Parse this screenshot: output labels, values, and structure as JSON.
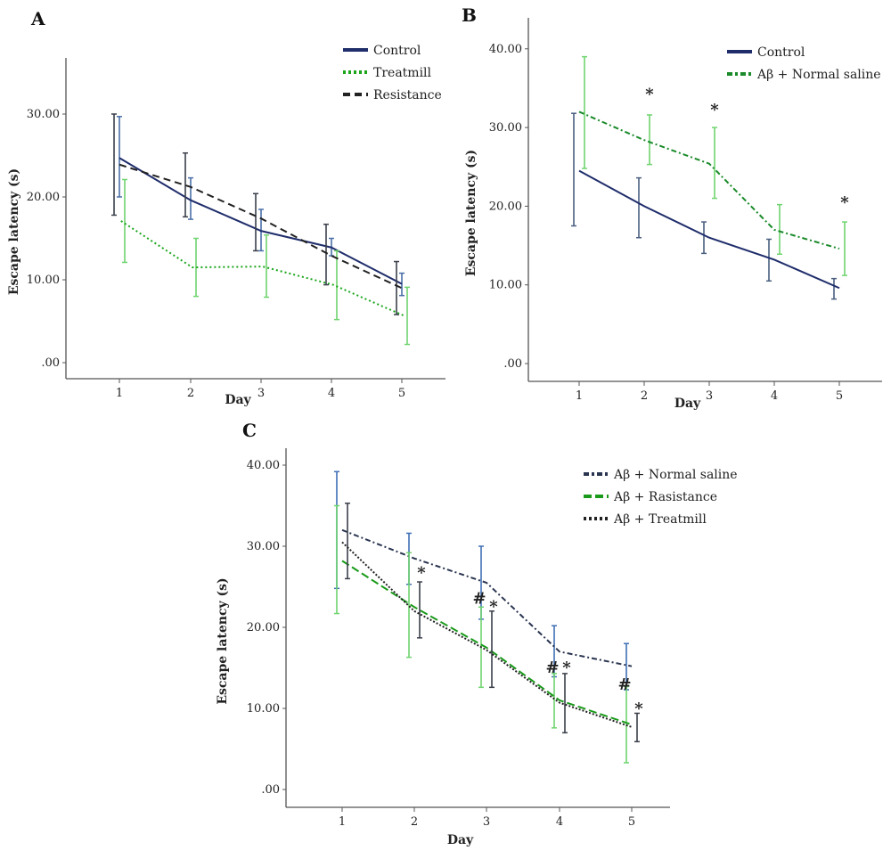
{
  "chart_data": [
    {
      "panel_label": "A",
      "type": "line",
      "xlabel": "Day",
      "ylabel": "Escape latency (s)",
      "categories": [
        "1",
        "2",
        "3",
        "4",
        "5"
      ],
      "y_ticks": [
        ".00",
        "10.00",
        "20.00",
        "30.00"
      ],
      "ylim": [
        -2,
        37
      ],
      "grid": false,
      "legend_position": "top-right",
      "series": [
        {
          "name": "Control",
          "color": "#1f2d6b",
          "bar_color": "#4a6fa8",
          "dash": "",
          "values": [
            24.7,
            19.6,
            15.9,
            13.9,
            9.5
          ],
          "err_high": [
            29.7,
            22.3,
            18.5,
            15.0,
            10.8
          ],
          "err_low": [
            20.0,
            17.3,
            13.5,
            12.9,
            8.1
          ]
        },
        {
          "name": "Treatmill",
          "color": "#1aa51a",
          "bar_color": "#6fd46f",
          "dash": "2,3",
          "values": [
            17.1,
            11.5,
            11.6,
            9.4,
            5.7
          ],
          "err_high": [
            22.1,
            15.0,
            15.4,
            13.5,
            9.1
          ],
          "err_low": [
            12.1,
            8.0,
            7.9,
            5.2,
            2.2
          ]
        },
        {
          "name": "Resistance",
          "color": "#222222",
          "bar_color": "#3a3f4a",
          "dash": "8,5",
          "values": [
            23.9,
            21.2,
            17.4,
            12.9,
            9.0
          ],
          "err_high": [
            30.0,
            25.3,
            20.4,
            16.7,
            12.2
          ],
          "err_low": [
            17.8,
            17.6,
            13.5,
            9.4,
            5.8
          ]
        }
      ],
      "annotations": []
    },
    {
      "panel_label": "B",
      "type": "line",
      "xlabel": "Day",
      "ylabel": "Escape latency (s)",
      "categories": [
        "1",
        "2",
        "3",
        "4",
        "5"
      ],
      "y_ticks": [
        ".00",
        "10.00",
        "20.00",
        "30.00",
        "40.00"
      ],
      "ylim": [
        -2,
        42
      ],
      "grid": false,
      "legend_position": "top-right",
      "series": [
        {
          "name": "Control",
          "color": "#1f2d6b",
          "bar_color": "#4a5f80",
          "dash": "",
          "values": [
            24.5,
            20.0,
            16.0,
            13.2,
            9.6
          ],
          "err_high": [
            31.8,
            23.6,
            18.0,
            15.8,
            10.8
          ],
          "err_low": [
            17.5,
            16.0,
            14.0,
            10.5,
            8.2
          ]
        },
        {
          "name": "Aβ + Normal saline",
          "color": "#1a8a2a",
          "bar_color": "#6fd46f",
          "dash": "6,3,2,3",
          "values": [
            32.0,
            28.4,
            25.4,
            17.0,
            14.6
          ],
          "err_high": [
            39.0,
            31.6,
            30.0,
            20.2,
            18.0
          ],
          "err_low": [
            24.8,
            25.3,
            21.0,
            13.9,
            11.2
          ]
        }
      ],
      "annotations": [
        {
          "text": "*",
          "day": 2,
          "y": 34.5
        },
        {
          "text": "*",
          "day": 3,
          "y": 32.5
        },
        {
          "text": "*",
          "day": 5,
          "y": 20.7
        }
      ]
    },
    {
      "panel_label": "C",
      "type": "line",
      "xlabel": "Day",
      "ylabel": "Escape latency (s)",
      "categories": [
        "1",
        "2",
        "3",
        "4",
        "5"
      ],
      "y_ticks": [
        ".00",
        "10.00",
        "20.00",
        "30.00",
        "40.00"
      ],
      "ylim": [
        -2,
        42
      ],
      "grid": false,
      "legend_position": "top-right",
      "series": [
        {
          "name": "Aβ + Normal saline",
          "color": "#2a3550",
          "bar_color": "#3f6fb5",
          "dash": "6,3,2,3",
          "values": [
            32.0,
            28.5,
            25.5,
            17.0,
            15.2
          ],
          "err_high": [
            39.2,
            31.6,
            30.0,
            20.2,
            18.0
          ],
          "err_low": [
            24.8,
            25.3,
            21.0,
            13.9,
            12.3
          ]
        },
        {
          "name": "Aβ + Rasistance",
          "color": "#1a9a1a",
          "bar_color": "#6fd46f",
          "dash": "9,4",
          "values": [
            28.2,
            22.5,
            17.5,
            11.0,
            8.0
          ],
          "err_high": [
            35.0,
            29.2,
            22.5,
            14.3,
            12.7
          ],
          "err_low": [
            21.7,
            16.3,
            12.6,
            7.6,
            3.3
          ]
        },
        {
          "name": "Aβ + Treatmill",
          "color": "#222222",
          "bar_color": "#3a3f4a",
          "dash": "2,2",
          "values": [
            30.5,
            22.0,
            17.2,
            10.7,
            7.7
          ],
          "err_high": [
            35.3,
            25.6,
            22.0,
            14.3,
            9.4
          ],
          "err_low": [
            26.0,
            18.7,
            12.6,
            7.0,
            5.9
          ]
        }
      ],
      "annotations": [
        {
          "text": "*",
          "day": 2,
          "y": 27.0
        },
        {
          "text": "#",
          "day": 3,
          "y": 23.8
        },
        {
          "text": "*",
          "day": 3,
          "y": 22.8
        },
        {
          "text": "#",
          "day": 4,
          "y": 15.3
        },
        {
          "text": "*",
          "day": 4,
          "y": 15.3
        },
        {
          "text": "#",
          "day": 5,
          "y": 13.2
        },
        {
          "text": "*",
          "day": 5,
          "y": 10.2
        }
      ]
    }
  ]
}
